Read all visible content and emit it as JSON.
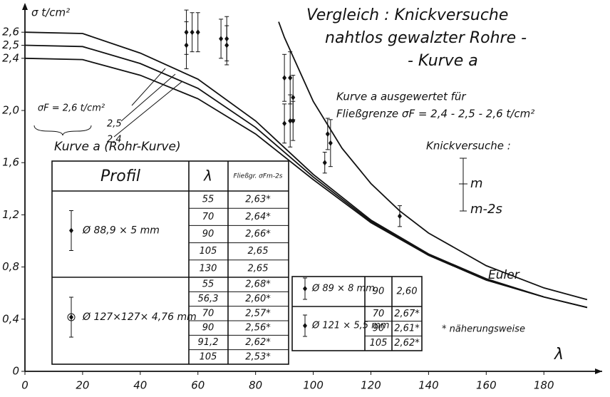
{
  "chart_data": {
    "type": "line",
    "title": [
      "Vergleich : Knickversuche",
      "nahtlos gewalzter Rohre -",
      "- Kurve a"
    ],
    "ylabel": "σ t/cm²",
    "xlabel": "λ",
    "annotations": [
      "Kurve a ausgewertet für",
      "Fließgrenze  σF = 2,4 - 2,5 - 2,6 t/cm²",
      "Kurve a (Rohr-Kurve)",
      "Knickversuche :",
      "m",
      "m-2s",
      "* näherungsweise"
    ],
    "xlim": [
      0,
      197
    ],
    "xticks": [
      0,
      20,
      40,
      60,
      80,
      100,
      120,
      140,
      160,
      180
    ],
    "ylim": [
      0,
      2.8
    ],
    "yticks": [
      0,
      {
        "value": 0.4,
        "label": "0,4"
      },
      {
        "value": 0.8,
        "label": "0,8"
      },
      {
        "value": 1.2,
        "label": "1,2"
      },
      {
        "value": 1.6,
        "label": "1,6"
      },
      {
        "value": 2.0,
        "label": "2,0"
      },
      {
        "value": 2.4,
        "label": "2,4"
      },
      {
        "value": 2.5,
        "label": "2,5"
      },
      {
        "value": 2.6,
        "label": "2,6"
      }
    ],
    "series": [
      {
        "name": "σF = 2,6 t/cm²",
        "color": "#111111",
        "x": [
          0,
          20,
          40,
          60,
          80,
          100,
          120,
          140,
          160,
          180,
          195
        ],
        "values": [
          2.6,
          2.59,
          2.44,
          2.24,
          1.92,
          1.51,
          1.16,
          0.9,
          0.71,
          0.57,
          0.49
        ]
      },
      {
        "name": "2,5",
        "color": "#111111",
        "x": [
          0,
          20,
          40,
          60,
          80,
          100,
          120,
          140,
          160,
          180,
          195
        ],
        "values": [
          2.5,
          2.49,
          2.36,
          2.17,
          1.87,
          1.49,
          1.15,
          0.89,
          0.7,
          0.57,
          0.49
        ]
      },
      {
        "name": "2,4",
        "color": "#111111",
        "x": [
          0,
          20,
          40,
          60,
          80,
          100,
          120,
          140,
          160,
          180,
          195
        ],
        "values": [
          2.4,
          2.39,
          2.27,
          2.09,
          1.82,
          1.47,
          1.14,
          0.89,
          0.7,
          0.57,
          0.49
        ]
      },
      {
        "name": "Euler",
        "color": "#111111",
        "x": [
          88,
          90,
          100,
          110,
          120,
          130,
          140,
          160,
          180,
          195
        ],
        "values": [
          2.68,
          2.56,
          2.07,
          1.71,
          1.44,
          1.23,
          1.06,
          0.81,
          0.64,
          0.55
        ]
      }
    ],
    "tests": {
      "x": [
        56,
        56,
        58,
        60,
        68,
        70,
        70,
        90,
        90,
        92,
        92,
        93,
        93,
        104,
        105,
        106,
        130
      ],
      "values": [
        2.5,
        2.6,
        2.6,
        2.6,
        2.55,
        2.55,
        2.5,
        2.25,
        1.9,
        2.25,
        1.92,
        2.1,
        1.92,
        1.6,
        1.82,
        1.75,
        1.19
      ],
      "err": [
        0.18,
        0.17,
        0.15,
        0.15,
        0.15,
        0.17,
        0.15,
        0.18,
        0.15,
        0.2,
        0.2,
        0.17,
        0.15,
        0.08,
        0.12,
        0.18,
        0.08
      ]
    }
  },
  "tables": {
    "left": {
      "header": [
        "Profil",
        "λ",
        "Fließgr. σFm-2s"
      ],
      "groups": [
        {
          "profile": "Ø 88,9 × 5 mm",
          "rows": [
            [
              "55",
              "2,63*"
            ],
            [
              "70",
              "2,64*"
            ],
            [
              "90",
              "2,66*"
            ],
            [
              "105",
              "2,65"
            ],
            [
              "130",
              "2,65"
            ]
          ]
        },
        {
          "profile": "Ø 127×127× 4,76 mm",
          "rows": [
            [
              "55",
              "2,68*"
            ],
            [
              "56,3",
              "2,60*"
            ],
            [
              "70",
              "2,57*"
            ],
            [
              "90",
              "2,56*"
            ],
            [
              "91,2",
              "2,62*"
            ],
            [
              "105",
              "2,53*"
            ]
          ]
        }
      ]
    },
    "right": {
      "groups": [
        {
          "profile": "Ø 89 × 8 mm",
          "rows": [
            [
              "90",
              "2,60"
            ]
          ]
        },
        {
          "profile": "Ø 121 × 5,5 mm",
          "rows": [
            [
              "70",
              "2,67*"
            ],
            [
              "90",
              "2,61*"
            ],
            [
              "105",
              "2,62*"
            ]
          ]
        }
      ]
    }
  }
}
